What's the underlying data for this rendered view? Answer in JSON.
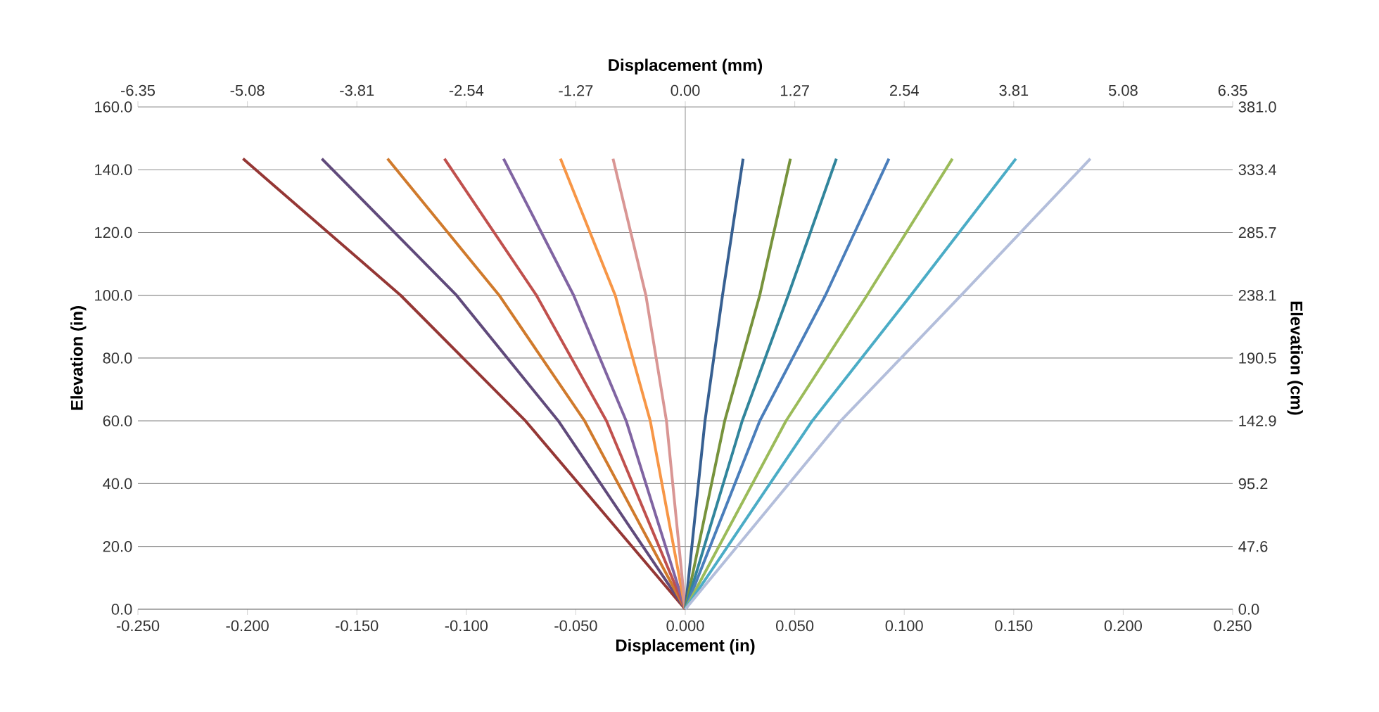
{
  "chart_data": {
    "type": "line",
    "xlabel": "Displacement (in)",
    "ylabel": "Elevation (in)",
    "x2label": "Displacement (mm)",
    "y2label": "Elevation (cm)",
    "xlim": [
      -0.25,
      0.25
    ],
    "ylim": [
      0,
      160
    ],
    "x2lim": [
      -6.35,
      6.35
    ],
    "y2lim": [
      0,
      381.0
    ],
    "xticks": [
      {
        "value": -0.25,
        "label": "-0.250"
      },
      {
        "value": -0.2,
        "label": "-0.200"
      },
      {
        "value": -0.15,
        "label": "-0.150"
      },
      {
        "value": -0.1,
        "label": "-0.100"
      },
      {
        "value": -0.05,
        "label": "-0.050"
      },
      {
        "value": 0,
        "label": "0.000"
      },
      {
        "value": 0.05,
        "label": "0.050"
      },
      {
        "value": 0.1,
        "label": "0.100"
      },
      {
        "value": 0.15,
        "label": "0.150"
      },
      {
        "value": 0.2,
        "label": "0.200"
      },
      {
        "value": 0.25,
        "label": "0.250"
      }
    ],
    "yticks": [
      {
        "value": 0,
        "label": "0.0"
      },
      {
        "value": 20,
        "label": "20.0"
      },
      {
        "value": 40,
        "label": "40.0"
      },
      {
        "value": 60,
        "label": "60.0"
      },
      {
        "value": 80,
        "label": "80.0"
      },
      {
        "value": 100,
        "label": "100.0"
      },
      {
        "value": 120,
        "label": "120.0"
      },
      {
        "value": 140,
        "label": "140.0"
      },
      {
        "value": 160,
        "label": "160.0"
      }
    ],
    "x2ticks": [
      -6.35,
      -5.08,
      -3.81,
      -2.54,
      -1.27,
      {
        "value": 0,
        "label": "0.00"
      },
      1.27,
      2.54,
      3.81,
      5.08,
      6.35
    ],
    "y2ticks": [
      {
        "value": 0,
        "label": "0.0"
      },
      47.6,
      95.2,
      142.9,
      190.5,
      238.1,
      285.7,
      333.4,
      {
        "value": 381.0,
        "label": "381.0"
      }
    ],
    "grid": "y",
    "ref_lines": [
      {
        "axis": "x",
        "value": 0,
        "color": "#a0a0a0"
      }
    ],
    "series": [
      {
        "color": "#953735",
        "x": [
          0,
          -0.073,
          -0.13,
          -0.202
        ],
        "values": [
          0,
          60,
          100,
          143.5
        ]
      },
      {
        "color": "#604a7b",
        "x": [
          0,
          -0.058,
          -0.1045,
          -0.166
        ],
        "values": [
          0,
          60,
          100,
          143.5
        ]
      },
      {
        "color": "#d07a2c",
        "x": [
          0,
          -0.046,
          -0.085,
          -0.136
        ],
        "values": [
          0,
          60,
          100,
          143.5
        ]
      },
      {
        "color": "#c0504d",
        "x": [
          0,
          -0.036,
          -0.068,
          -0.11
        ],
        "values": [
          0,
          60,
          100,
          143.5
        ]
      },
      {
        "color": "#8064a2",
        "x": [
          0,
          -0.027,
          -0.051,
          -0.083
        ],
        "values": [
          0,
          60,
          100,
          143.5
        ]
      },
      {
        "color": "#f79646",
        "x": [
          0,
          -0.016,
          -0.032,
          -0.057
        ],
        "values": [
          0,
          60,
          100,
          143.5
        ]
      },
      {
        "color": "#d99694",
        "x": [
          0,
          -0.0086,
          -0.018,
          -0.033
        ],
        "values": [
          0,
          60,
          100,
          143.5
        ]
      },
      {
        "color": "#376092",
        "x": [
          0,
          0.009,
          0.017,
          0.0264
        ],
        "values": [
          0,
          60,
          100,
          143.5
        ]
      },
      {
        "color": "#77933c",
        "x": [
          0,
          0.018,
          0.034,
          0.048
        ],
        "values": [
          0,
          60,
          100,
          143.5
        ]
      },
      {
        "color": "#31859c",
        "x": [
          0,
          0.026,
          0.047,
          0.069
        ],
        "values": [
          0,
          60,
          100,
          143.5
        ]
      },
      {
        "color": "#4a7ebb",
        "x": [
          0,
          0.034,
          0.064,
          0.093
        ],
        "values": [
          0,
          60,
          100,
          143.5
        ]
      },
      {
        "color": "#9bbb59",
        "x": [
          0,
          0.046,
          0.083,
          0.122
        ],
        "values": [
          0,
          60,
          100,
          143.5
        ]
      },
      {
        "color": "#4bacc6",
        "x": [
          0,
          0.058,
          0.103,
          0.151
        ],
        "values": [
          0,
          60,
          100,
          143.5
        ]
      },
      {
        "color": "#b3bedb",
        "x": [
          0,
          0.071,
          0.126,
          0.185
        ],
        "values": [
          0,
          60,
          100,
          143.5
        ]
      }
    ]
  }
}
